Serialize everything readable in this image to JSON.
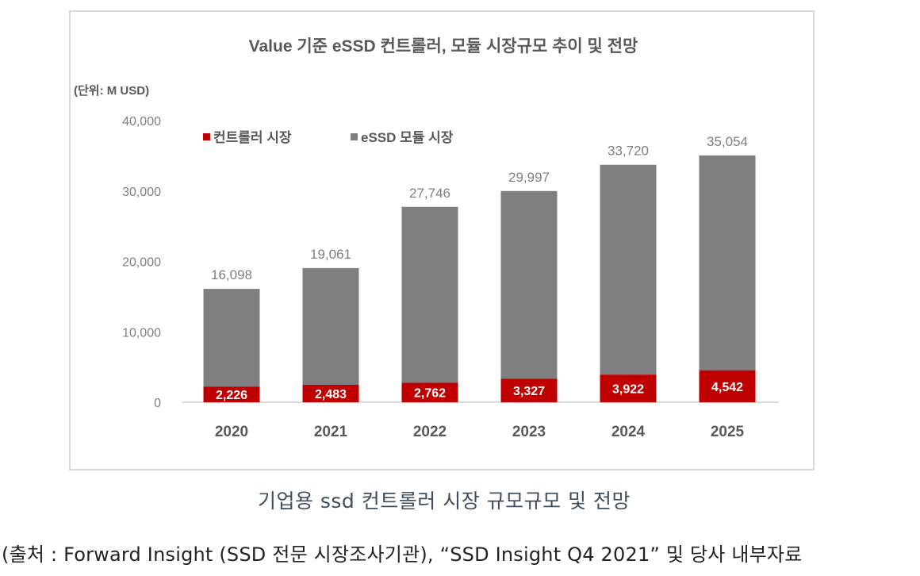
{
  "chart_data": {
    "type": "bar",
    "stacked": true,
    "title": "Value 기준 eSSD 컨트롤러, 모듈 시장규모 추이 및 전망",
    "unit_label": "(단위: M USD)",
    "xlabel": "",
    "ylabel": "",
    "categories": [
      "2020",
      "2021",
      "2022",
      "2023",
      "2024",
      "2025"
    ],
    "series": [
      {
        "name": "컨트롤러 시장",
        "color": "#c00000",
        "values": [
          2226,
          2483,
          2762,
          3327,
          3922,
          4542
        ],
        "labels": [
          "2,226",
          "2,483",
          "2,762",
          "3,327",
          "3,922",
          "4,542"
        ]
      },
      {
        "name": "eSSD 모듈 시장",
        "color": "#7f7f7f",
        "totals": [
          16098,
          19061,
          27746,
          29997,
          33720,
          35054
        ],
        "labels": [
          "16,098",
          "19,061",
          "27,746",
          "29,997",
          "33,720",
          "35,054"
        ]
      }
    ],
    "yticks": [
      "0",
      "10,000",
      "20,000",
      "30,000",
      "40,000"
    ],
    "ytick_values": [
      0,
      10000,
      20000,
      30000,
      40000
    ],
    "ylim": [
      0,
      40000
    ],
    "grid": false,
    "legend_position": "top-left",
    "label_color_total": "#7f7f7f",
    "label_color_inner": "#ffffff",
    "axis_text_color": "#7f7f7f"
  },
  "caption": "기업용 ssd 컨트롤러 시장 규모규모 및 전망",
  "source": "(출처 : Forward Insight (SSD 전문 시장조사기관), “SSD Insight Q4 2021” 및 당사 내부자료"
}
